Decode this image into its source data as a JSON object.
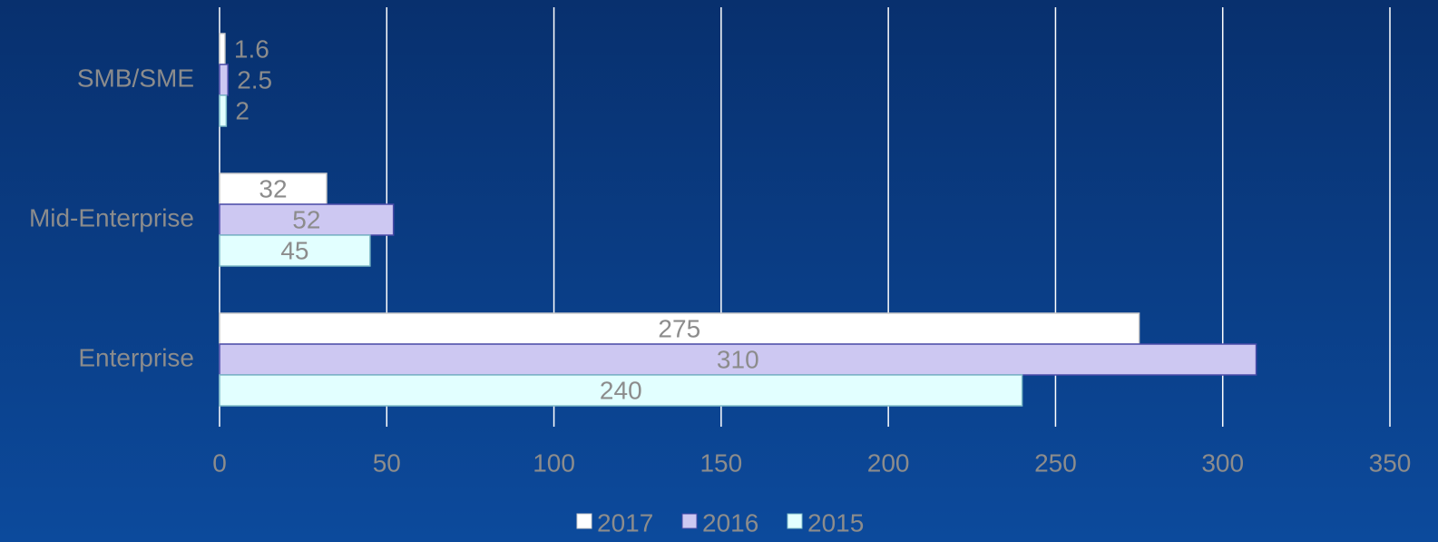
{
  "chart_data": {
    "type": "hbar",
    "categories": [
      "SMB/SME",
      "Mid-Enterprise",
      "Enterprise"
    ],
    "series": [
      {
        "name": "2017",
        "color": "#ffffff",
        "values": [
          1.6,
          32,
          275
        ]
      },
      {
        "name": "2016",
        "color": "#cdc8f2",
        "values": [
          2.5,
          52,
          310
        ]
      },
      {
        "name": "2015",
        "color": "#e2ffff",
        "values": [
          2,
          45,
          240
        ]
      }
    ],
    "xlim": [
      0,
      350
    ],
    "xticks": [
      0,
      50,
      100,
      150,
      200,
      250,
      300,
      350
    ],
    "grid": true,
    "legend": "bottom"
  }
}
